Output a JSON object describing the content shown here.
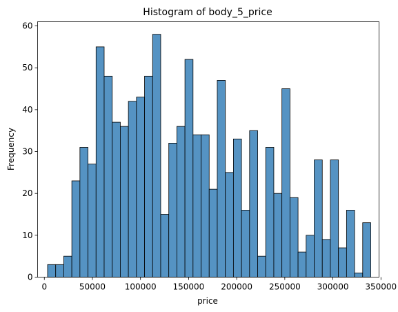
{
  "chart_data": {
    "type": "histogram",
    "title": "Histogram of body_5_price",
    "xlabel": "price",
    "ylabel": "Frequency",
    "xlim": [
      -7000,
      348000
    ],
    "ylim": [
      0,
      61
    ],
    "xticks": [
      0,
      50000,
      100000,
      150000,
      200000,
      250000,
      300000,
      350000
    ],
    "yticks": [
      0,
      10,
      20,
      30,
      40,
      50,
      60
    ],
    "bin_start": 3400,
    "bin_width": 8400,
    "counts": [
      3,
      3,
      5,
      23,
      31,
      27,
      55,
      48,
      37,
      36,
      42,
      43,
      48,
      58,
      15,
      32,
      36,
      52,
      34,
      34,
      21,
      47,
      25,
      33,
      16,
      35,
      5,
      31,
      20,
      45,
      19,
      6,
      10,
      28,
      9,
      28,
      7,
      16,
      1,
      13
    ],
    "grid": false,
    "colors": {
      "bar_fill": "#5593c3",
      "bar_edge": "#000000",
      "axes": "#000000"
    }
  }
}
